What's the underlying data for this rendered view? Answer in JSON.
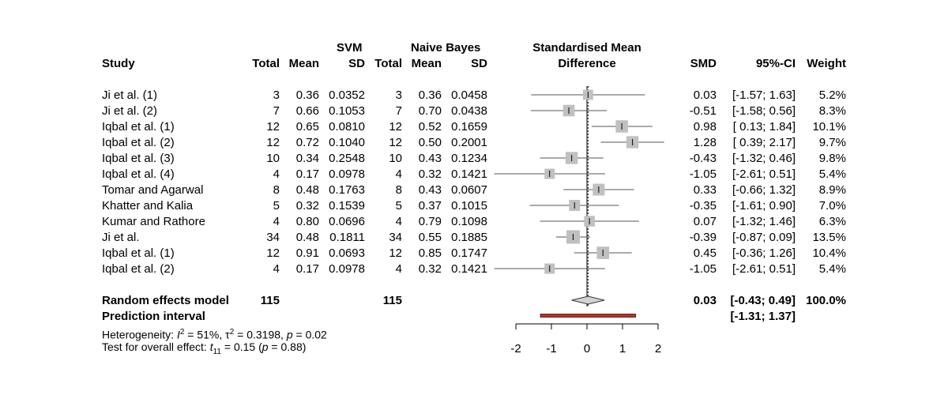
{
  "header": {
    "group1": "SVM",
    "group2": "Naive Bayes",
    "plot_title_1": "Standardised Mean",
    "plot_title_2": "Difference",
    "study": "Study",
    "total1": "Total",
    "mean1": "Mean",
    "sd1": "SD",
    "total2": "Total",
    "mean2": "Mean",
    "sd2": "SD",
    "smd": "SMD",
    "ci": "95%-CI",
    "weight": "Weight"
  },
  "rows": [
    {
      "study": "Ji et al. (1)",
      "n1": "3",
      "m1": "0.36",
      "sd1": "0.0352",
      "n2": "3",
      "m2": "0.36",
      "sd2": "0.0458",
      "smd_text": "0.03",
      "ci_text": "[-1.57; 1.63]",
      "weight": "5.2%"
    },
    {
      "study": "Ji et al. (2)",
      "n1": "7",
      "m1": "0.66",
      "sd1": "0.1053",
      "n2": "7",
      "m2": "0.70",
      "sd2": "0.0438",
      "smd_text": "-0.51",
      "ci_text": "[-1.58; 0.56]",
      "weight": "8.3%"
    },
    {
      "study": "Iqbal et al. (1)",
      "n1": "12",
      "m1": "0.65",
      "sd1": "0.0810",
      "n2": "12",
      "m2": "0.52",
      "sd2": "0.1659",
      "smd_text": "0.98",
      "ci_text": "[ 0.13; 1.84]",
      "weight": "10.1%"
    },
    {
      "study": "Iqbal et al. (2)",
      "n1": "12",
      "m1": "0.72",
      "sd1": "0.1040",
      "n2": "12",
      "m2": "0.50",
      "sd2": "0.2001",
      "smd_text": "1.28",
      "ci_text": "[ 0.39; 2.17]",
      "weight": "9.7%"
    },
    {
      "study": "Iqbal et al. (3)",
      "n1": "10",
      "m1": "0.34",
      "sd1": "0.2548",
      "n2": "10",
      "m2": "0.43",
      "sd2": "0.1234",
      "smd_text": "-0.43",
      "ci_text": "[-1.32; 0.46]",
      "weight": "9.8%"
    },
    {
      "study": "Iqbal et al. (4)",
      "n1": "4",
      "m1": "0.17",
      "sd1": "0.0978",
      "n2": "4",
      "m2": "0.32",
      "sd2": "0.1421",
      "smd_text": "-1.05",
      "ci_text": "[-2.61; 0.51]",
      "weight": "5.4%"
    },
    {
      "study": "Tomar and Agarwal",
      "n1": "8",
      "m1": "0.48",
      "sd1": "0.1763",
      "n2": "8",
      "m2": "0.43",
      "sd2": "0.0607",
      "smd_text": "0.33",
      "ci_text": "[-0.66; 1.32]",
      "weight": "8.9%"
    },
    {
      "study": "Khatter and Kalia",
      "n1": "5",
      "m1": "0.32",
      "sd1": "0.1539",
      "n2": "5",
      "m2": "0.37",
      "sd2": "0.1015",
      "smd_text": "-0.35",
      "ci_text": "[-1.61; 0.90]",
      "weight": "7.0%"
    },
    {
      "study": "Kumar and Rathore",
      "n1": "4",
      "m1": "0.80",
      "sd1": "0.0696",
      "n2": "4",
      "m2": "0.79",
      "sd2": "0.1098",
      "smd_text": "0.07",
      "ci_text": "[-1.32; 1.46]",
      "weight": "6.3%"
    },
    {
      "study": "Ji et al.",
      "n1": "34",
      "m1": "0.48",
      "sd1": "0.1811",
      "n2": "34",
      "m2": "0.55",
      "sd2": "0.1885",
      "smd_text": "-0.39",
      "ci_text": "[-0.87; 0.09]",
      "weight": "13.5%"
    },
    {
      "study": "Iqbal et al. (1)",
      "n1": "12",
      "m1": "0.91",
      "sd1": "0.0693",
      "n2": "12",
      "m2": "0.85",
      "sd2": "0.1747",
      "smd_text": "0.45",
      "ci_text": "[-0.36; 1.26]",
      "weight": "10.4%"
    },
    {
      "study": "Iqbal et al. (2)",
      "n1": "4",
      "m1": "0.17",
      "sd1": "0.0978",
      "n2": "4",
      "m2": "0.32",
      "sd2": "0.1421",
      "smd_text": "-1.05",
      "ci_text": "[-2.61; 0.51]",
      "weight": "5.4%"
    }
  ],
  "summary": {
    "random_label": "Random effects model",
    "total1": "115",
    "total2": "115",
    "smd_text": "0.03",
    "ci_text": "[-0.43; 0.49]",
    "weight": "100.0%",
    "pi_label": "Prediction interval",
    "pi_text": "[-1.31; 1.37]"
  },
  "footer": {
    "het_prefix": "Heterogeneity: ",
    "het_i": "I",
    "het_i_sup": "2",
    "het_mid": " = 51%, τ",
    "het_tau_sup": "2",
    "het_tau_val": " = 0.3198, ",
    "het_p": "p",
    "het_p_val": " = 0.02",
    "test_prefix": "Test for overall effect: ",
    "test_t": "t",
    "test_t_sub": "11",
    "test_val": " = 0.15 (",
    "test_p": "p",
    "test_p_val": " = 0.88)"
  },
  "chart_data": {
    "type": "forest",
    "xlim": [
      -2,
      2
    ],
    "ticks": [
      -2,
      -1,
      0,
      1,
      2
    ],
    "tick_labels": [
      "-2",
      "-1",
      "0",
      "1",
      "2"
    ],
    "studies": [
      {
        "smd": 0.03,
        "lower": -1.57,
        "upper": 1.63,
        "weight": 5.2
      },
      {
        "smd": -0.51,
        "lower": -1.58,
        "upper": 0.56,
        "weight": 8.3
      },
      {
        "smd": 0.98,
        "lower": 0.13,
        "upper": 1.84,
        "weight": 10.1
      },
      {
        "smd": 1.28,
        "lower": 0.39,
        "upper": 2.17,
        "weight": 9.7
      },
      {
        "smd": -0.43,
        "lower": -1.32,
        "upper": 0.46,
        "weight": 9.8
      },
      {
        "smd": -1.05,
        "lower": -2.61,
        "upper": 0.51,
        "weight": 5.4
      },
      {
        "smd": 0.33,
        "lower": -0.66,
        "upper": 1.32,
        "weight": 8.9
      },
      {
        "smd": -0.35,
        "lower": -1.61,
        "upper": 0.9,
        "weight": 7.0
      },
      {
        "smd": 0.07,
        "lower": -1.32,
        "upper": 1.46,
        "weight": 6.3
      },
      {
        "smd": -0.39,
        "lower": -0.87,
        "upper": 0.09,
        "weight": 13.5
      },
      {
        "smd": 0.45,
        "lower": -0.36,
        "upper": 1.26,
        "weight": 10.4
      },
      {
        "smd": -1.05,
        "lower": -2.61,
        "upper": 0.51,
        "weight": 5.4
      }
    ],
    "pooled": {
      "smd": 0.03,
      "lower": -0.43,
      "upper": 0.49
    },
    "prediction_interval": {
      "lower": -1.31,
      "upper": 1.37
    },
    "colors": {
      "square": "#c0c0c0",
      "diamond": "#d3d3d3",
      "prediction": "#cc2a1f",
      "line": "#000000",
      "ci": "#555555"
    }
  }
}
